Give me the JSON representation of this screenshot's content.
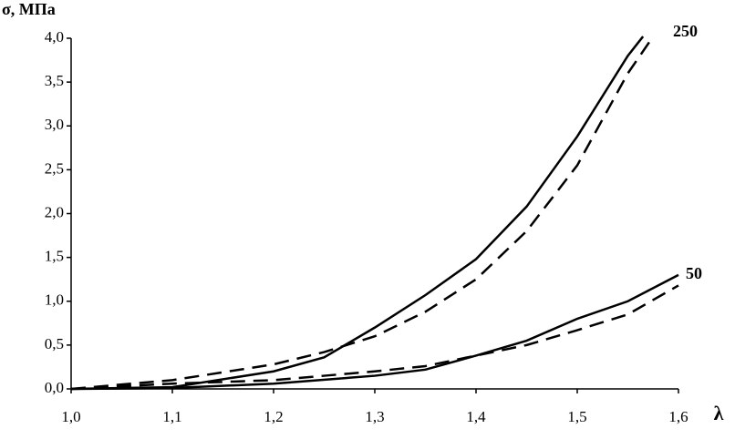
{
  "chart_data": {
    "type": "line",
    "y_label": "σ, МПа",
    "x_label": "λ",
    "annotations": [
      "250",
      "50"
    ],
    "xlim": [
      1.0,
      1.6
    ],
    "xticks": [
      {
        "value": 1.0,
        "label": "1,0"
      },
      {
        "value": 1.1,
        "label": "1,1"
      },
      {
        "value": 1.2,
        "label": "1,2"
      },
      {
        "value": 1.3,
        "label": "1,3"
      },
      {
        "value": 1.4,
        "label": "1,4"
      },
      {
        "value": 1.5,
        "label": "1,5"
      },
      {
        "value": 1.6,
        "label": "1,6"
      }
    ],
    "ylim": [
      0,
      4.0
    ],
    "yticks": [
      {
        "value": 0,
        "label": "0,0"
      },
      {
        "value": 0.5,
        "label": "0,5"
      },
      {
        "value": 1.0,
        "label": "1,0"
      },
      {
        "value": 1.5,
        "label": "1,5"
      },
      {
        "value": 2.0,
        "label": "2,0"
      },
      {
        "value": 2.5,
        "label": "2,5"
      },
      {
        "value": 3.0,
        "label": "3,0"
      },
      {
        "value": 3.5,
        "label": "3,5"
      },
      {
        "value": 4.0,
        "label": "4,0"
      }
    ],
    "series": [
      {
        "color": "#000000",
        "dash": false,
        "x": [
          1.0,
          1.1,
          1.2,
          1.25,
          1.3,
          1.35,
          1.4,
          1.45,
          1.5,
          1.55,
          1.565
        ],
        "values": [
          0,
          0.02,
          0.2,
          0.36,
          0.7,
          1.07,
          1.48,
          2.08,
          2.88,
          3.8,
          4.02
        ]
      },
      {
        "color": "#000000",
        "dash": true,
        "x": [
          1.0,
          1.1,
          1.2,
          1.25,
          1.3,
          1.35,
          1.4,
          1.45,
          1.5,
          1.55,
          1.575
        ],
        "values": [
          0,
          0.1,
          0.28,
          0.42,
          0.6,
          0.88,
          1.25,
          1.8,
          2.55,
          3.6,
          4.02
        ]
      },
      {
        "color": "#000000",
        "dash": false,
        "x": [
          1.0,
          1.1,
          1.2,
          1.3,
          1.35,
          1.4,
          1.45,
          1.5,
          1.55,
          1.6
        ],
        "values": [
          0,
          0.01,
          0.06,
          0.15,
          0.22,
          0.38,
          0.55,
          0.8,
          1.0,
          1.3
        ]
      },
      {
        "color": "#000000",
        "dash": true,
        "x": [
          1.0,
          1.1,
          1.2,
          1.3,
          1.35,
          1.4,
          1.45,
          1.5,
          1.55,
          1.6
        ],
        "values": [
          0,
          0.06,
          0.1,
          0.2,
          0.26,
          0.38,
          0.5,
          0.67,
          0.85,
          1.18
        ]
      }
    ]
  }
}
